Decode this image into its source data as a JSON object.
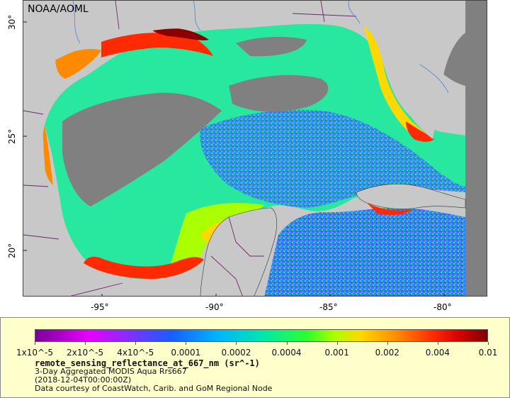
{
  "map": {
    "credit": "NOAA/AOML",
    "lat_labels": [
      "30°",
      "25°",
      "20°"
    ],
    "lon_labels": [
      "-95°",
      "-90°",
      "-85°",
      "-80°"
    ],
    "colors": {
      "land": "#c8c8c8",
      "no_data": "#808080",
      "ocean_mid": "#2bff30",
      "coast_high": "#ff2a00",
      "deep_low": "#5b40ff",
      "border": "#6a2a6a",
      "river": "#5a8ad0"
    }
  },
  "legend": {
    "ticks": [
      "1x10^-5",
      "2x10^-5",
      "4x10^-5",
      "0.0001",
      "0.0002",
      "0.0004",
      "0.001",
      "0.002",
      "0.004",
      "0.01"
    ],
    "title": "remote_sensing_reflectance_at_667_nm (sr^-1)",
    "subtitle": "3-Day Aggregated MODIS Aqua Rrs667",
    "date": "(2018-12-04T00:00:00Z)",
    "source": "Data courtesy of CoastWatch, Carib. and GoM Regional Node"
  }
}
